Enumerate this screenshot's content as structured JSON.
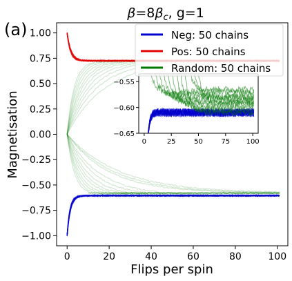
{
  "panel_label": "(a)",
  "chart_data": [
    {
      "type": "line",
      "title": "β=8βc, g=1",
      "title_parts": {
        "symbol": "β",
        "rest1": "=8",
        "symbol2": "β",
        "subscript": "c",
        "rest2": ", g=1"
      },
      "xlabel": "Flips per spin",
      "ylabel": "Magnetisation",
      "xlim": [
        -5,
        105
      ],
      "ylim": [
        -1.1,
        1.1
      ],
      "xticks": [
        0,
        20,
        40,
        60,
        80,
        100
      ],
      "xtick_labels": [
        "0",
        "20",
        "40",
        "60",
        "80",
        "100"
      ],
      "yticks": [
        -1.0,
        -0.75,
        -0.5,
        -0.25,
        0.0,
        0.25,
        0.5,
        0.75,
        1.0
      ],
      "ytick_labels": [
        "−1.00",
        "−0.75",
        "−0.50",
        "−0.25",
        "0.00",
        "0.25",
        "0.50",
        "0.75",
        "1.00"
      ],
      "grid": false,
      "legend_position": "top-right",
      "legend": [
        {
          "label": "Neg: 50 chains",
          "color": "#0000cc"
        },
        {
          "label": "Pos: 50 chains",
          "color": "#e00000"
        },
        {
          "label": "Random: 50 chains",
          "color": "#007700"
        }
      ],
      "series": [
        {
          "name": "Neg: 50 chains",
          "color": "#0000cc",
          "start": -1.0,
          "plateau": -0.605,
          "rate": 0.7,
          "x_end": 101
        },
        {
          "name": "Pos: 50 chains",
          "color": "#e00000",
          "start": 1.0,
          "plateau": 0.725,
          "rate": 0.6,
          "x_end": 101
        },
        {
          "name": "Random: 50 chains",
          "color": "#007700",
          "start": 0.0,
          "branches": [
            {
              "plateau": 0.725,
              "rates": [
                0.3,
                0.26,
                0.22,
                0.19,
                0.16,
                0.14,
                0.12,
                0.1,
                0.085,
                0.07,
                0.055
              ]
            },
            {
              "plateau": -0.605,
              "rates": [
                0.28,
                0.24,
                0.2,
                0.17,
                0.14,
                0.12,
                0.1,
                0.08,
                0.065
              ]
            },
            {
              "plateau": -0.58,
              "rates": [
                0.05,
                0.045,
                0.04
              ]
            }
          ],
          "x_end": 101
        }
      ]
    },
    {
      "type": "line",
      "title": "",
      "xlabel": "",
      "ylabel": "",
      "xlim": [
        -5,
        105
      ],
      "ylim": [
        -0.65,
        -0.535
      ],
      "xticks": [
        0,
        25,
        50,
        75,
        100
      ],
      "xtick_labels": [
        "0",
        "25",
        "50",
        "75",
        "100"
      ],
      "yticks": [
        -0.65,
        -0.6,
        -0.55
      ],
      "ytick_labels": [
        "−0.65",
        "−0.60",
        "−0.55"
      ],
      "grid": false,
      "series": [
        {
          "name": "",
          "color": "#0000cc",
          "level": -0.61,
          "noise": 0.008,
          "x_end": 101
        },
        {
          "name": "",
          "color": "#007700",
          "levels": [
            -0.57,
            -0.575,
            -0.58,
            -0.585,
            -0.59,
            -0.595,
            -0.6,
            -0.605,
            -0.61,
            -0.565,
            -0.58,
            -0.59
          ],
          "x_end": 101
        }
      ]
    }
  ]
}
